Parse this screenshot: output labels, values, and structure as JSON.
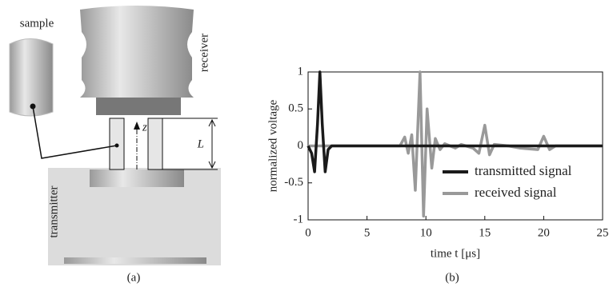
{
  "panel_a": {
    "sample": "sample",
    "receiver": "receiver",
    "transmitter": "transmitter",
    "axis": "z",
    "length": "L",
    "caption": "(a)"
  },
  "chart_data": {
    "type": "line",
    "caption": "(b)",
    "xlabel": "time t  [μs]",
    "ylabel": "normalized voltage",
    "xlim": [
      0,
      25
    ],
    "xticks": [
      0,
      5,
      10,
      15,
      20,
      25
    ],
    "ylim": [
      -1,
      1
    ],
    "yticks": [
      -1,
      -0.5,
      0,
      0.5,
      1
    ],
    "legend": "lower right",
    "series": [
      {
        "name": "transmitted signal",
        "color": "#1a1a1a",
        "x": [
          0,
          0.3,
          0.55,
          0.8,
          1.0,
          1.2,
          1.45,
          1.7,
          2,
          25
        ],
        "values": [
          0,
          -0.1,
          -0.35,
          0.3,
          1,
          0.3,
          -0.35,
          -0.05,
          0,
          0
        ]
      },
      {
        "name": "received signal",
        "color": "#999999",
        "x": [
          0,
          7.8,
          8.2,
          8.5,
          8.8,
          9.1,
          9.5,
          9.8,
          10.1,
          10.5,
          10.8,
          11.2,
          11.6,
          12.5,
          13,
          14,
          14.5,
          15,
          15.4,
          15.8,
          17,
          18,
          19.5,
          20,
          20.5,
          21,
          25
        ],
        "values": [
          0,
          0,
          0.12,
          -0.1,
          0.15,
          -0.6,
          1,
          -0.95,
          0.5,
          -0.3,
          0.1,
          -0.05,
          0.03,
          -0.03,
          0.02,
          -0.03,
          -0.1,
          0.28,
          -0.12,
          0.02,
          0,
          -0.03,
          -0.05,
          0.13,
          -0.05,
          0,
          0
        ]
      }
    ]
  }
}
